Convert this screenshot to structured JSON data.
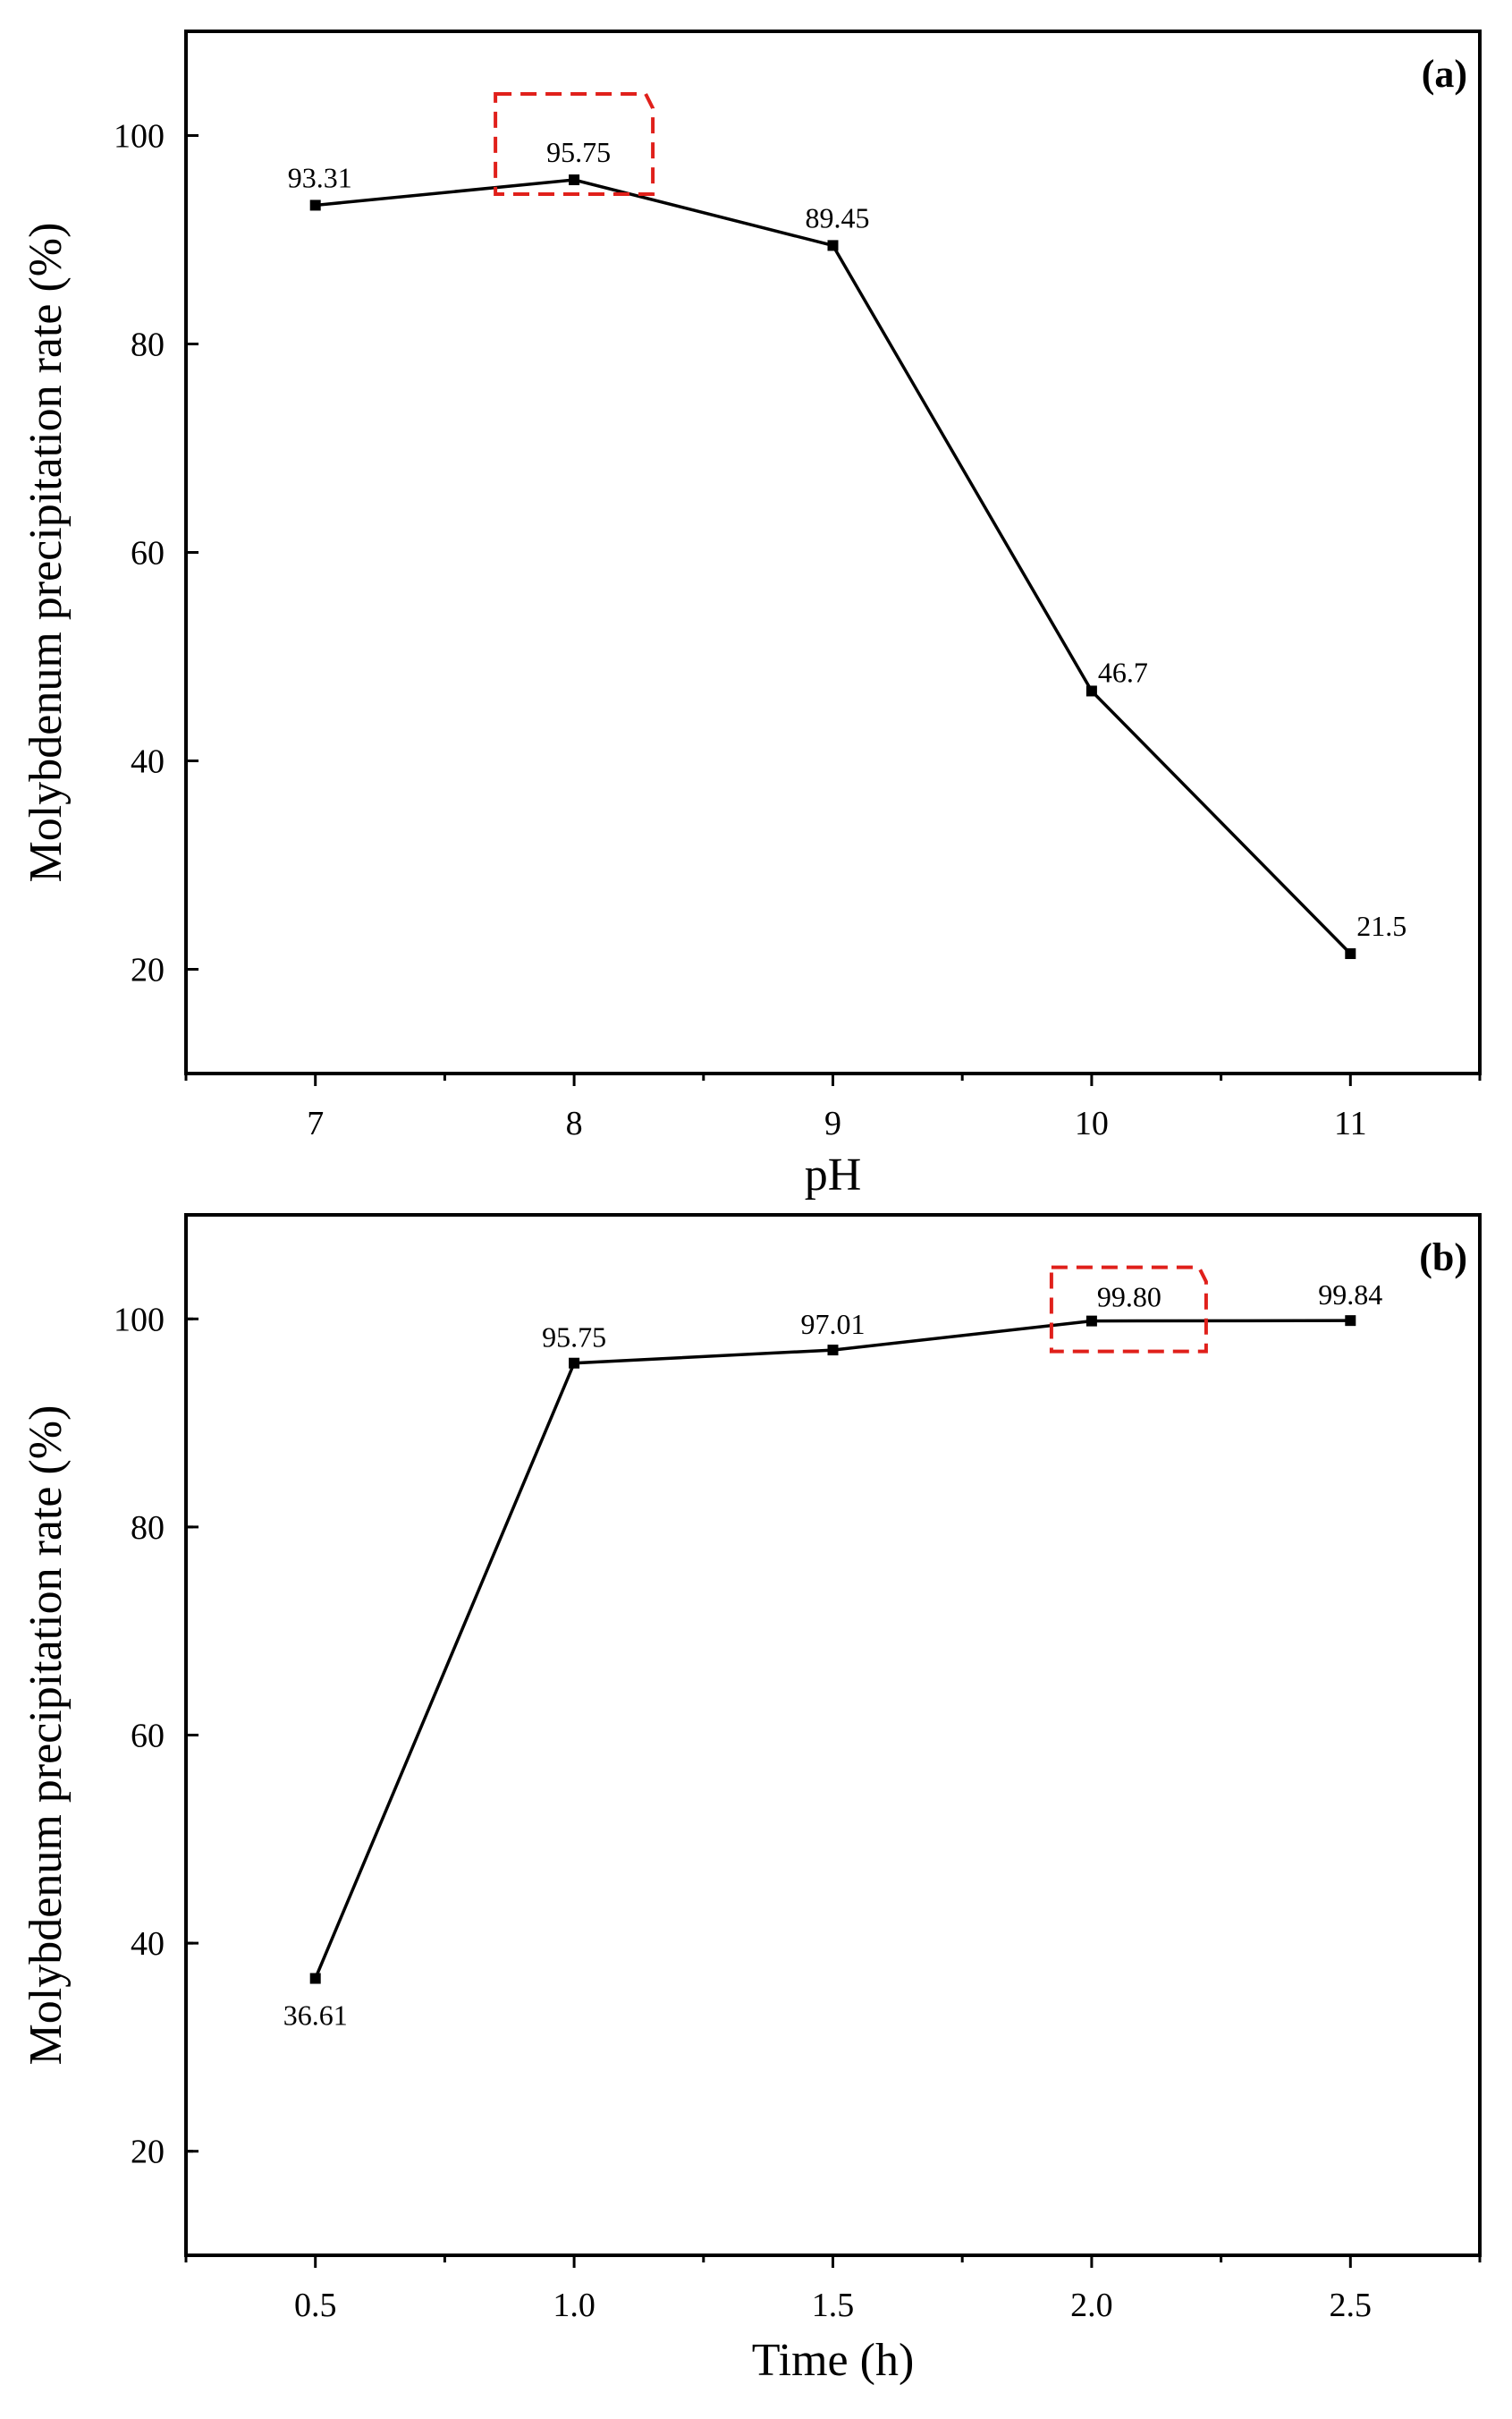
{
  "chart_data": [
    {
      "type": "line",
      "panel_label": "(a)",
      "xlabel": "pH",
      "ylabel": "Molybdenum precipitation rate (%)",
      "x": [
        7,
        8,
        9,
        10,
        11
      ],
      "x_tick_labels": [
        "7",
        "8",
        "9",
        "10",
        "11"
      ],
      "xlim": [
        6.5,
        11.5
      ],
      "ylim": [
        10,
        110
      ],
      "y_ticks": [
        20,
        40,
        60,
        80,
        100
      ],
      "y_tick_labels": [
        "20",
        "40",
        "60",
        "80",
        "100"
      ],
      "series": [
        {
          "values": [
            93.31,
            95.75,
            89.45,
            46.7,
            21.5
          ]
        }
      ],
      "data_labels": [
        "93.31",
        "95.75",
        "89.45",
        "46.7",
        "21.5"
      ],
      "highlight_index": 1,
      "grid": false,
      "colors": {
        "line": "#000000",
        "highlight": "#e0201b"
      }
    },
    {
      "type": "line",
      "panel_label": "(b)",
      "xlabel": "Time (h)",
      "ylabel": "Molybdenum precipitation rate (%)",
      "x": [
        0.5,
        1.0,
        1.5,
        2.0,
        2.5
      ],
      "x_tick_labels": [
        "0.5",
        "1.0",
        "1.5",
        "2.0",
        "2.5"
      ],
      "xlim": [
        0.25,
        2.75
      ],
      "ylim": [
        10,
        110
      ],
      "y_ticks": [
        20,
        40,
        60,
        80,
        100
      ],
      "y_tick_labels": [
        "20",
        "40",
        "60",
        "80",
        "100"
      ],
      "series": [
        {
          "values": [
            36.61,
            95.75,
            97.01,
            99.8,
            99.84
          ]
        }
      ],
      "data_labels": [
        "36.61",
        "95.75",
        "97.01",
        "99.80",
        "99.84"
      ],
      "highlight_index": 3,
      "grid": false,
      "colors": {
        "line": "#000000",
        "highlight": "#e0201b"
      }
    }
  ]
}
